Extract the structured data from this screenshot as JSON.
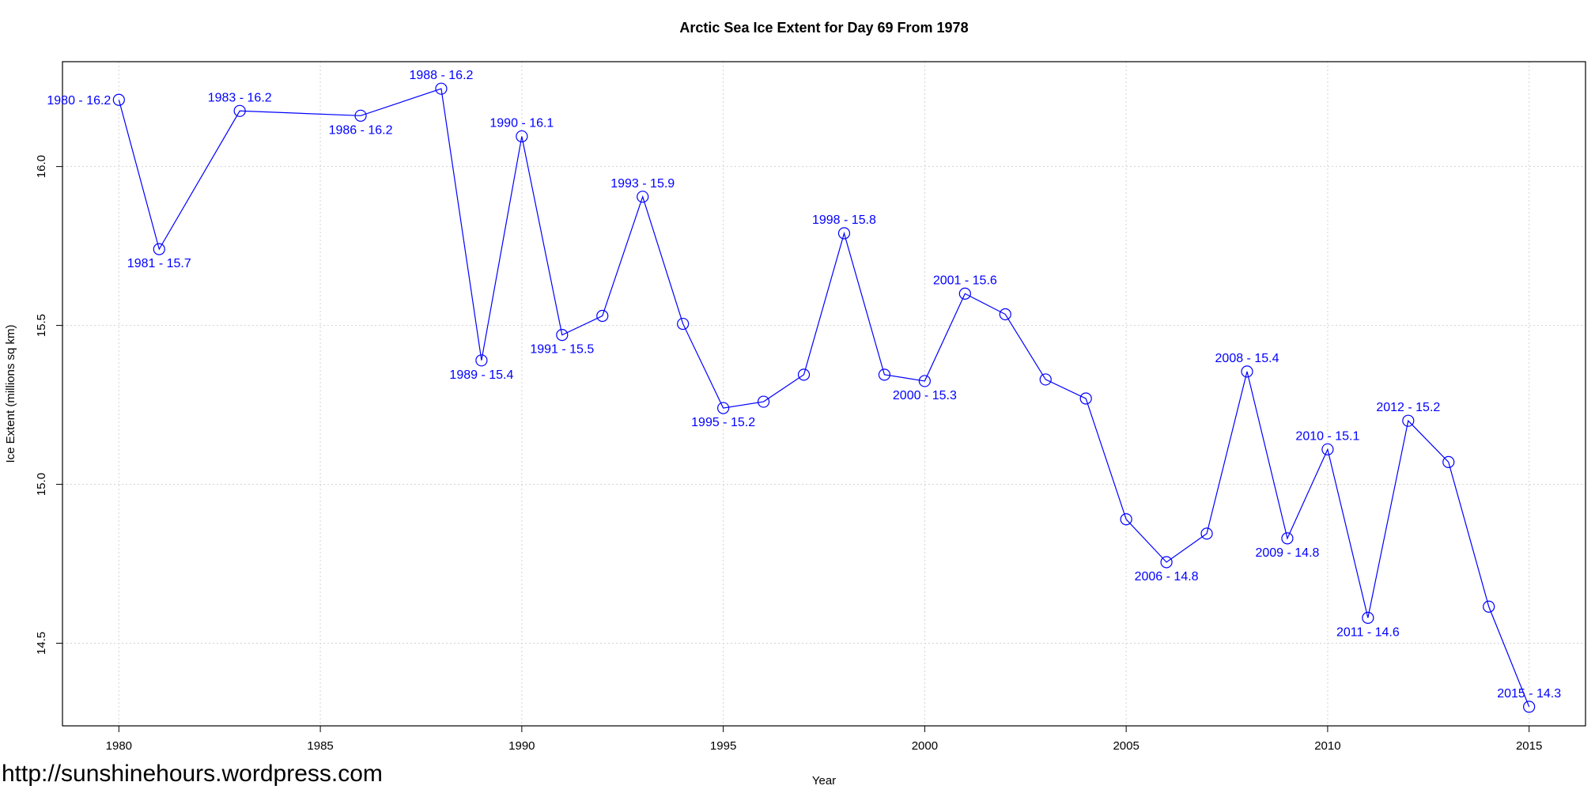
{
  "chart_data": {
    "type": "line",
    "title": "Arctic Sea Ice Extent for Day 69 From 1978",
    "xlabel": "Year",
    "ylabel": "Ice Extent (millions sq km)",
    "xlim": [
      1978.6,
      2016.4
    ],
    "ylim": [
      14.24,
      16.33
    ],
    "x_ticks": [
      1980,
      1985,
      1990,
      1995,
      2000,
      2005,
      2010,
      2015
    ],
    "y_ticks": [
      14.5,
      15.0,
      15.5,
      16.0
    ],
    "y_tick_labels": [
      "14.5",
      "15.0",
      "15.5",
      "16.0"
    ],
    "grid": true,
    "series": [
      {
        "x": [
          1980,
          1981,
          1983,
          1986,
          1988,
          1989,
          1990,
          1991,
          1992,
          1993,
          1994,
          1995,
          1996,
          1997,
          1998,
          1999,
          2000,
          2001,
          2002,
          2003,
          2004,
          2005,
          2006,
          2007,
          2008,
          2009,
          2010,
          2011,
          2012,
          2013,
          2014,
          2015
        ],
        "y": [
          16.21,
          15.74,
          16.175,
          16.16,
          16.245,
          15.39,
          16.095,
          15.47,
          15.53,
          15.905,
          15.505,
          15.24,
          15.26,
          15.345,
          15.79,
          15.345,
          15.325,
          15.6,
          15.535,
          15.33,
          15.27,
          14.89,
          14.755,
          14.845,
          15.355,
          14.83,
          15.11,
          14.58,
          15.2,
          15.07,
          14.615,
          14.3
        ]
      }
    ],
    "annotations": [
      {
        "x": 1980,
        "y": 16.21,
        "text": "1980 - 16.2",
        "pos": "left"
      },
      {
        "x": 1981,
        "y": 15.74,
        "text": "1981 - 15.7",
        "pos": "below"
      },
      {
        "x": 1983,
        "y": 16.175,
        "text": "1983 - 16.2",
        "pos": "above"
      },
      {
        "x": 1986,
        "y": 16.16,
        "text": "1986 - 16.2",
        "pos": "below"
      },
      {
        "x": 1988,
        "y": 16.245,
        "text": "1988 - 16.2",
        "pos": "above"
      },
      {
        "x": 1989,
        "y": 15.39,
        "text": "1989 - 15.4",
        "pos": "below"
      },
      {
        "x": 1990,
        "y": 16.095,
        "text": "1990 - 16.1",
        "pos": "above"
      },
      {
        "x": 1991,
        "y": 15.47,
        "text": "1991 - 15.5",
        "pos": "below"
      },
      {
        "x": 1993,
        "y": 15.905,
        "text": "1993 - 15.9",
        "pos": "above"
      },
      {
        "x": 1995,
        "y": 15.24,
        "text": "1995 - 15.2",
        "pos": "below"
      },
      {
        "x": 1998,
        "y": 15.79,
        "text": "1998 - 15.8",
        "pos": "above"
      },
      {
        "x": 2000,
        "y": 15.325,
        "text": "2000 - 15.3",
        "pos": "below"
      },
      {
        "x": 2001,
        "y": 15.6,
        "text": "2001 - 15.6",
        "pos": "above"
      },
      {
        "x": 2006,
        "y": 14.755,
        "text": "2006 - 14.8",
        "pos": "below"
      },
      {
        "x": 2008,
        "y": 15.355,
        "text": "2008 - 15.4",
        "pos": "above"
      },
      {
        "x": 2009,
        "y": 14.83,
        "text": "2009 - 14.8",
        "pos": "below"
      },
      {
        "x": 2010,
        "y": 15.11,
        "text": "2010 - 15.1",
        "pos": "above"
      },
      {
        "x": 2011,
        "y": 14.58,
        "text": "2011 - 14.6",
        "pos": "below"
      },
      {
        "x": 2012,
        "y": 15.2,
        "text": "2012 - 15.2",
        "pos": "above"
      },
      {
        "x": 2015,
        "y": 14.3,
        "text": "2015 - 14.3",
        "pos": "above"
      }
    ],
    "colors": {
      "series": "#0000ff",
      "grid": "#d3d3d3",
      "axis": "#000000"
    }
  },
  "watermark": "http://sunshinehours.wordpress.com"
}
